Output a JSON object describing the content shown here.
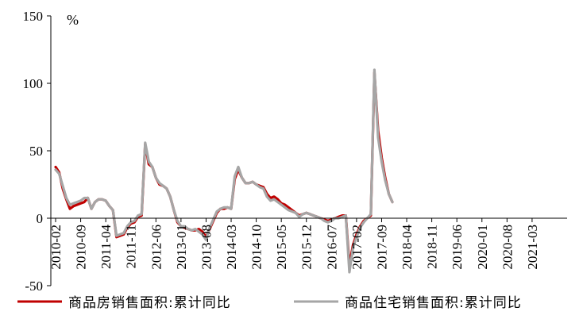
{
  "chart_data": {
    "type": "line",
    "unit": "%",
    "ylim": [
      -50,
      150
    ],
    "yticks": [
      -50,
      0,
      50,
      100,
      150
    ],
    "x_tick_labels": [
      "2010-02",
      "2010-09",
      "2011-04",
      "2011-11",
      "2012-06",
      "2013-01",
      "2013-08",
      "2014-03",
      "2014-10",
      "2015-05",
      "2015-12",
      "2016-07",
      "2017-02",
      "2017-09",
      "2018-04",
      "2018-11",
      "2019-06",
      "2020-01",
      "2020-08",
      "2021-03"
    ],
    "x_start": "2010-02",
    "x_end": "2021-11",
    "grid": false,
    "legend_position": "bottom",
    "colors": {
      "series1": "#C00000",
      "series2": "#A6A6A6"
    },
    "series": [
      {
        "name": "商品房销售面积:累计同比",
        "values": [
          38,
          34,
          22,
          14,
          7,
          9,
          10,
          11,
          12,
          15,
          7,
          12,
          14,
          14,
          13,
          9,
          6,
          -14,
          -13,
          -12,
          -7,
          -4,
          -3,
          1,
          2,
          55,
          40,
          38,
          30,
          25,
          24,
          22,
          16,
          6,
          -3,
          -6,
          -7,
          -8,
          -9,
          -9,
          -8,
          -10,
          -14,
          -8,
          -2,
          4,
          7,
          7,
          8,
          7,
          29,
          36,
          30,
          26,
          26,
          27,
          25,
          24,
          23,
          18,
          15,
          16,
          14,
          11,
          10,
          8,
          6,
          4,
          2,
          3,
          4,
          3,
          2,
          1,
          0,
          -1,
          -2,
          -1,
          0,
          1,
          2,
          2,
          -35,
          -20,
          -12,
          -6,
          -2,
          0,
          2,
          108,
          65,
          45,
          30,
          18,
          12
        ]
      },
      {
        "name": "商品住宅销售面积:累计同比",
        "values": [
          36,
          33,
          24,
          15,
          10,
          11,
          12,
          13,
          15,
          15,
          7,
          12,
          14,
          14,
          13,
          9,
          6,
          -13,
          -12,
          -11,
          -6,
          -3,
          -2,
          2,
          3,
          56,
          42,
          38,
          30,
          26,
          24,
          22,
          16,
          6,
          -2,
          -6,
          -6,
          -8,
          -9,
          -8,
          -10,
          -12,
          -16,
          -7,
          -1,
          5,
          7,
          8,
          8,
          7,
          31,
          38,
          30,
          26,
          26,
          27,
          25,
          23,
          22,
          16,
          13,
          14,
          12,
          10,
          8,
          6,
          5,
          4,
          1,
          3,
          4,
          3,
          2,
          1,
          0,
          -2,
          -3,
          -2,
          0,
          0,
          1,
          2,
          -40,
          -22,
          -14,
          -7,
          -3,
          0,
          3,
          110,
          60,
          42,
          28,
          18,
          12
        ]
      }
    ]
  }
}
